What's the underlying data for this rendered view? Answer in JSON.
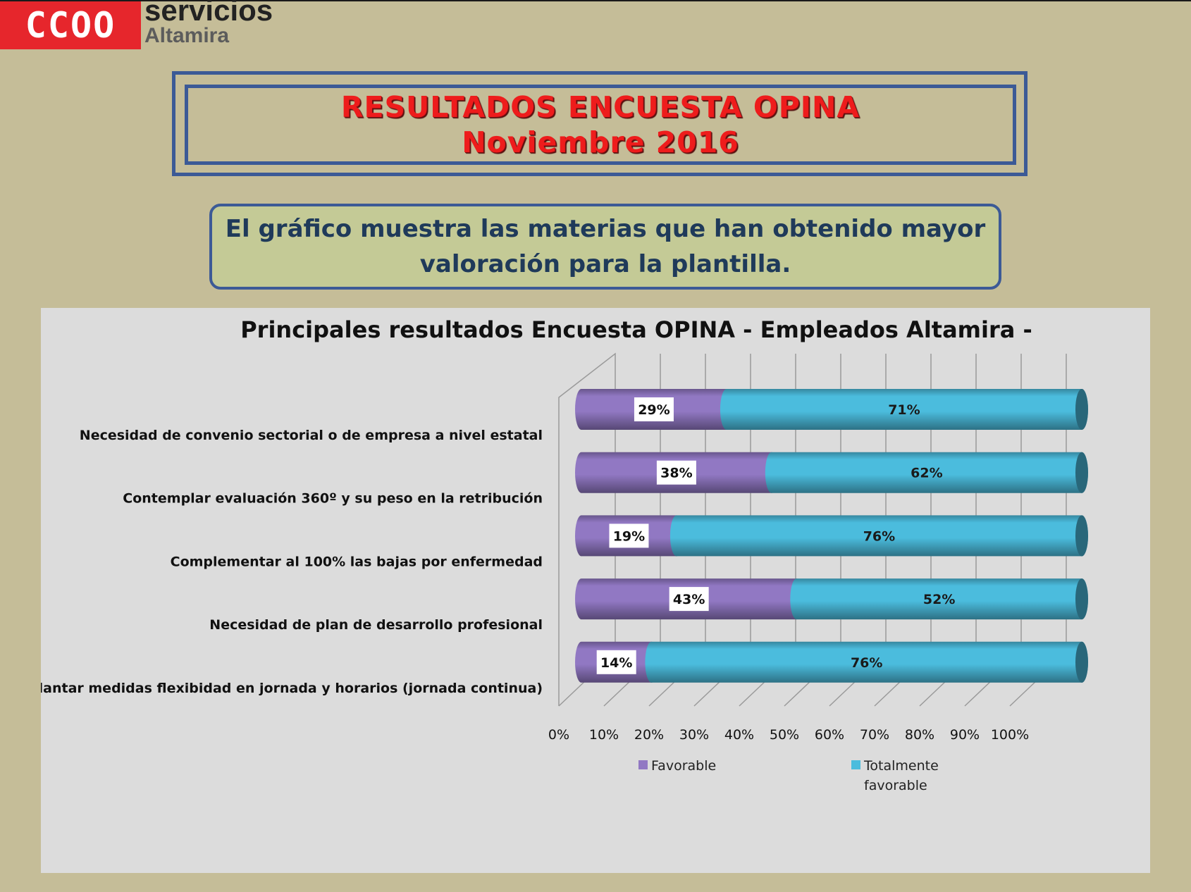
{
  "logo": {
    "mark": "CCOO",
    "word": "servicios",
    "sub": "Altamira"
  },
  "banner": {
    "title_line1": "RESULTADOS ENCUESTA OPINA",
    "title_line2": "Noviembre 2016"
  },
  "note": {
    "line1": "El gráfico muestra las materias que han obtenido mayor",
    "line2": "valoración para la plantilla."
  },
  "colors": {
    "favorable": "#9178c3",
    "totalmente": "#4bbcdd",
    "title_red": "#ee1c1c",
    "frame_blue": "#3c5a96"
  },
  "chart_data": {
    "type": "bar",
    "orientation": "horizontal",
    "stacked": true,
    "style": "3d-cylinder",
    "title": "Principales resultados Encuesta OPINA - Empleados Altamira -",
    "categories": [
      "Necesidad de convenio sectorial o de empresa a nivel estatal",
      "Contemplar evaluación 360º y su peso en la retribución",
      "Complementar al 100% las bajas por enfermedad",
      "Necesidad de plan de desarrollo profesional",
      "Implantar medidas flexibidad en jornada y horarios (jornada continua)"
    ],
    "series": [
      {
        "name": "Favorable",
        "color": "#9178c3",
        "values": [
          29,
          38,
          19,
          43,
          14
        ],
        "labels": [
          "29%",
          "38%",
          "19%",
          "43%",
          "14%"
        ]
      },
      {
        "name": "Totalmente favorable",
        "color": "#4bbcdd",
        "values": [
          71,
          62,
          76,
          52,
          76
        ],
        "labels": [
          "71%",
          "62%",
          "76%",
          "52%",
          "76%"
        ]
      }
    ],
    "xlim": [
      0,
      100
    ],
    "xticks": [
      "0%",
      "10%",
      "20%",
      "30%",
      "40%",
      "50%",
      "60%",
      "70%",
      "80%",
      "90%",
      "100%"
    ],
    "grid": true,
    "legend_position": "bottom",
    "legend_lines": [
      [
        "Favorable"
      ],
      [
        "Totalmente",
        "favorable"
      ]
    ]
  }
}
